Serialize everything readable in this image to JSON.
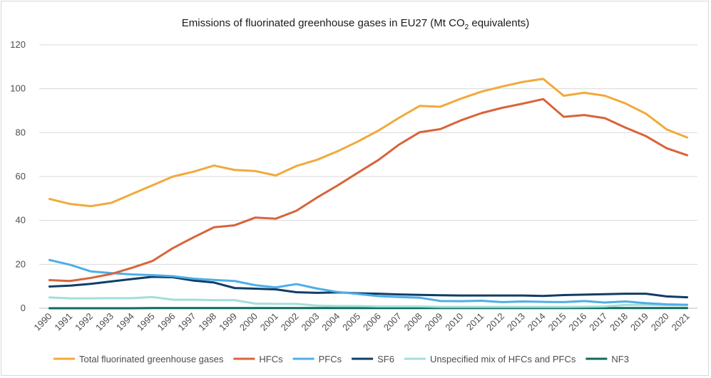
{
  "chart_data": {
    "type": "line",
    "title_prefix": "Emissions of fluorinated greenhouse gases in EU27 (Mt CO",
    "title_sub": "2",
    "title_suffix": " equivalents)",
    "ylim": [
      0,
      120
    ],
    "y_ticks": [
      "0",
      "20",
      "40",
      "60",
      "80",
      "100",
      "120"
    ],
    "grid": true,
    "legend_position": "bottom",
    "x": [
      "1990",
      "1991",
      "1992",
      "1993",
      "1994",
      "1995",
      "1996",
      "1997",
      "1998",
      "1999",
      "2000",
      "2001",
      "2002",
      "2003",
      "2004",
      "2005",
      "2006",
      "2007",
      "2008",
      "2009",
      "2010",
      "2011",
      "2012",
      "2013",
      "2014",
      "2015",
      "2016",
      "2017",
      "2018",
      "2019",
      "2020",
      "2021"
    ],
    "series": [
      {
        "name": "Total fluorinated greenhouse gases",
        "color": "#F2A93B",
        "values": [
          49.8,
          47.5,
          46.5,
          48,
          52,
          56,
          60,
          62.2,
          65,
          63,
          62.5,
          60.5,
          64.8,
          67.6,
          71.5,
          76,
          81,
          86.8,
          92.2,
          91.8,
          95.5,
          98.7,
          101,
          103.1,
          104.5,
          96.8,
          98.2,
          96.8,
          93.3,
          88.6,
          81.5,
          77.8
        ]
      },
      {
        "name": "HFCs",
        "color": "#D9633A",
        "values": [
          12.8,
          12.4,
          13.8,
          15.6,
          18.4,
          21.5,
          27.4,
          32.3,
          36.9,
          37.8,
          41.3,
          40.8,
          44.4,
          50.4,
          55.9,
          61.8,
          67.6,
          74.6,
          80.2,
          81.6,
          85.6,
          88.9,
          91.3,
          93.2,
          95.3,
          87.2,
          88,
          86.6,
          82.3,
          78.4,
          72.9,
          69.7
        ]
      },
      {
        "name": "PFCs",
        "color": "#4DAEE8",
        "values": [
          22,
          19.8,
          16.8,
          16,
          15.4,
          15.1,
          14.6,
          13.5,
          12.9,
          12.4,
          10.5,
          9.5,
          11,
          9,
          7.4,
          6.5,
          5.5,
          5.1,
          4.8,
          3.3,
          3.2,
          3.4,
          2.8,
          3.1,
          2.9,
          2.8,
          3.3,
          2.6,
          3.1,
          2.3,
          1.8,
          1.6
        ]
      },
      {
        "name": "SF6",
        "color": "#0F3D66",
        "values": [
          9.9,
          10.3,
          11.1,
          12.2,
          13.3,
          14.3,
          14.1,
          12.6,
          11.7,
          9.2,
          8.9,
          8.6,
          7.3,
          7,
          7.2,
          6.8,
          6.6,
          6.3,
          6.1,
          5.9,
          5.8,
          5.8,
          5.8,
          5.8,
          5.6,
          6,
          6.2,
          6.4,
          6.6,
          6.6,
          5.4,
          5
        ]
      },
      {
        "name": "Unspecified mix of HFCs and PFCs",
        "color": "#A3DEDA",
        "values": [
          4.9,
          4.5,
          4.5,
          4.6,
          4.6,
          5.1,
          3.9,
          3.9,
          3.7,
          3.7,
          2.1,
          2,
          2,
          1.2,
          1,
          1,
          0.8,
          0.8,
          0.8,
          0.6,
          0.6,
          0.6,
          0.6,
          0.6,
          0.6,
          0.6,
          0.7,
          0.8,
          1.5,
          1.6,
          1.4,
          1.4
        ]
      },
      {
        "name": "NF3",
        "color": "#0E6B5E",
        "values": [
          0,
          0,
          0,
          0,
          0,
          0.1,
          0.1,
          0.1,
          0.1,
          0.1,
          0.1,
          0.1,
          0.1,
          0.1,
          0.1,
          0.1,
          0.1,
          0.1,
          0.1,
          0.1,
          0.1,
          0.1,
          0.1,
          0.1,
          0.1,
          0.1,
          0.1,
          0.1,
          0.1,
          0.1,
          0.1,
          0.1
        ]
      }
    ]
  }
}
